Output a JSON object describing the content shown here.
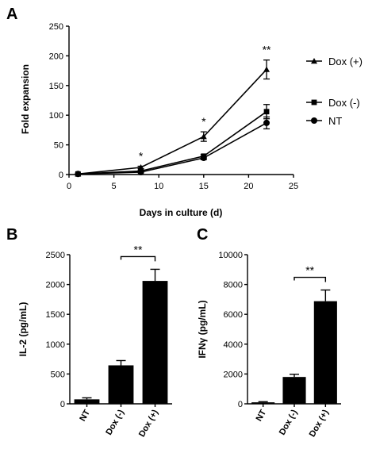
{
  "figure": {
    "panel_a_label": "A",
    "panel_b_label": "B",
    "panel_c_label": "C"
  },
  "chart_data": [
    {
      "type": "line",
      "panel": "A",
      "xlabel": "Days in culture (d)",
      "ylabel": "Fold expansion",
      "xlim": [
        0,
        25
      ],
      "ylim": [
        0,
        250
      ],
      "xticks": [
        "0",
        "5",
        "10",
        "15",
        "20",
        "25"
      ],
      "yticks": [
        "0",
        "50",
        "100",
        "150",
        "200",
        "250"
      ],
      "x": [
        1,
        8,
        15,
        22
      ],
      "series": [
        {
          "name": "Dox (+)",
          "marker": "triangle",
          "values": [
            1,
            12,
            64,
            177
          ],
          "errors": [
            0,
            2,
            8,
            16
          ]
        },
        {
          "name": "Dox (-)",
          "marker": "square",
          "values": [
            1,
            6,
            31,
            106
          ],
          "errors": [
            0,
            1,
            3,
            12
          ]
        },
        {
          "name": "NT",
          "marker": "circle",
          "values": [
            1,
            4,
            28,
            87
          ],
          "errors": [
            0,
            1,
            3,
            10
          ]
        }
      ],
      "annotations": [
        {
          "x": 8,
          "text": "*"
        },
        {
          "x": 15,
          "text": "*"
        },
        {
          "x": 22,
          "text": "**"
        }
      ],
      "legend": "right"
    },
    {
      "type": "bar",
      "panel": "B",
      "ylabel": "IL-2 (pg/mL)",
      "ylim": [
        0,
        2500
      ],
      "yticks": [
        "0",
        "500",
        "1000",
        "1500",
        "2000",
        "2500"
      ],
      "categories": [
        "NT",
        "Dox (-)",
        "Dox (+)"
      ],
      "values": [
        75,
        645,
        2060
      ],
      "errors": [
        25,
        80,
        195
      ],
      "significance": {
        "from": 1,
        "to": 2,
        "text": "**"
      }
    },
    {
      "type": "bar",
      "panel": "C",
      "ylabel": "IFNγ (pg/mL)",
      "ylim": [
        0,
        10000
      ],
      "yticks": [
        "0",
        "2000",
        "4000",
        "6000",
        "8000",
        "10000"
      ],
      "categories": [
        "NT",
        "Dox (-)",
        "Dox (+)"
      ],
      "values": [
        100,
        1800,
        6880
      ],
      "errors": [
        40,
        180,
        750
      ],
      "significance": {
        "from": 1,
        "to": 2,
        "text": "**"
      }
    }
  ]
}
